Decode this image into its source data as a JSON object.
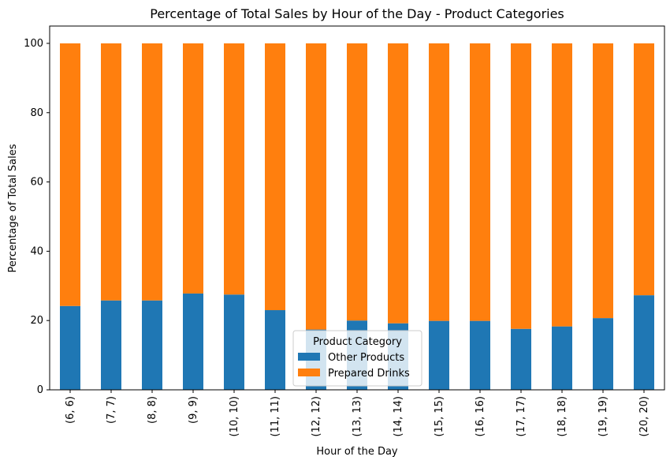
{
  "chart_data": {
    "type": "bar",
    "stacked": true,
    "title": "Percentage of Total Sales by Hour of the Day - Product Categories",
    "xlabel": "Hour of the Day",
    "ylabel": "Percentage of Total Sales",
    "ylim": [
      0,
      105
    ],
    "yticks": [
      0,
      20,
      40,
      60,
      80,
      100
    ],
    "categories": [
      "(6, 6)",
      "(7, 7)",
      "(8, 8)",
      "(9, 9)",
      "(10, 10)",
      "(11, 11)",
      "(12, 12)",
      "(13, 13)",
      "(14, 14)",
      "(15, 15)",
      "(16, 16)",
      "(17, 17)",
      "(18, 18)",
      "(19, 19)",
      "(20, 20)"
    ],
    "series": [
      {
        "name": "Other Products",
        "color": "#1f77b4",
        "values": [
          24.2,
          25.8,
          25.8,
          27.8,
          27.5,
          23.0,
          17.4,
          20.0,
          19.2,
          19.9,
          19.9,
          17.6,
          18.3,
          20.7,
          27.3
        ]
      },
      {
        "name": "Prepared Drinks",
        "color": "#ff7f0e",
        "values": [
          75.8,
          74.2,
          74.2,
          72.2,
          72.5,
          77.0,
          82.6,
          80.0,
          80.8,
          80.1,
          80.1,
          82.4,
          81.7,
          79.3,
          72.7
        ]
      }
    ],
    "legend": {
      "title": "Product Category",
      "position": "lower-center"
    },
    "grid": false
  }
}
